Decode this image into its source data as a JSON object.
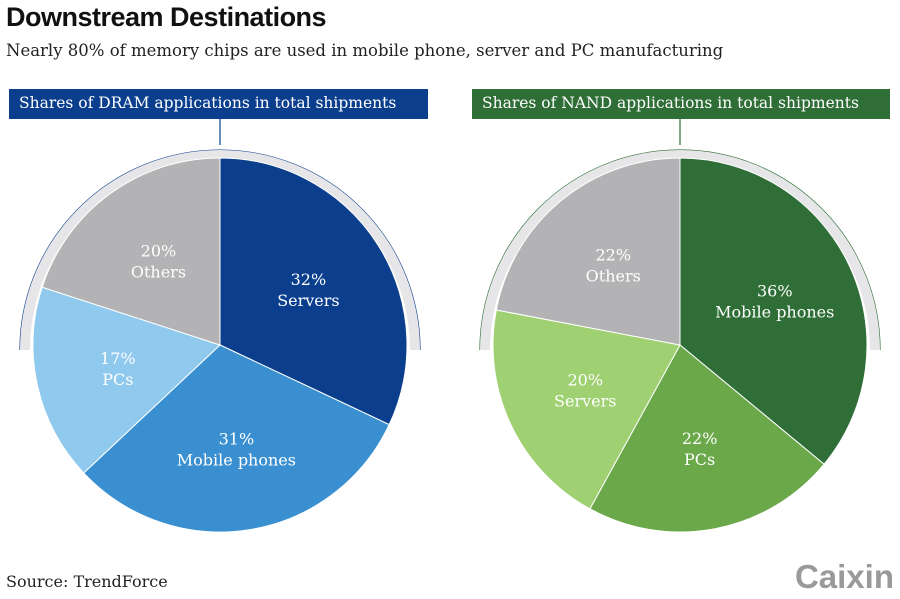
{
  "title": "Downstream Destinations",
  "subtitle": "Nearly 80% of memory chips are used in mobile phone, server and PC manufacturing",
  "source": "Source: TrendForce",
  "logo": "Caixin",
  "chart_data": [
    {
      "type": "pie",
      "title": "Shares of DRAM applications in total shipments",
      "header_color": "#0b3f8e",
      "categories": [
        "Servers",
        "Mobile phones",
        "PCs",
        "Others"
      ],
      "values": [
        32,
        31,
        17,
        20
      ],
      "labels": [
        "32%",
        "31%",
        "17%",
        "20%"
      ],
      "colors": [
        "#0b3f8e",
        "#3a8fd0",
        "#8fc9ed",
        "#b3b3b5"
      ]
    },
    {
      "type": "pie",
      "title": "Shares of NAND applications in total shipments",
      "header_color": "#2f6e36",
      "categories": [
        "Mobile phones",
        "PCs",
        "Servers",
        "Others"
      ],
      "values": [
        36,
        22,
        20,
        22
      ],
      "labels": [
        "36%",
        "22%",
        "20%",
        "22%"
      ],
      "colors": [
        "#2f6e36",
        "#6aa84a",
        "#9fd072",
        "#b3b3b5"
      ]
    }
  ]
}
